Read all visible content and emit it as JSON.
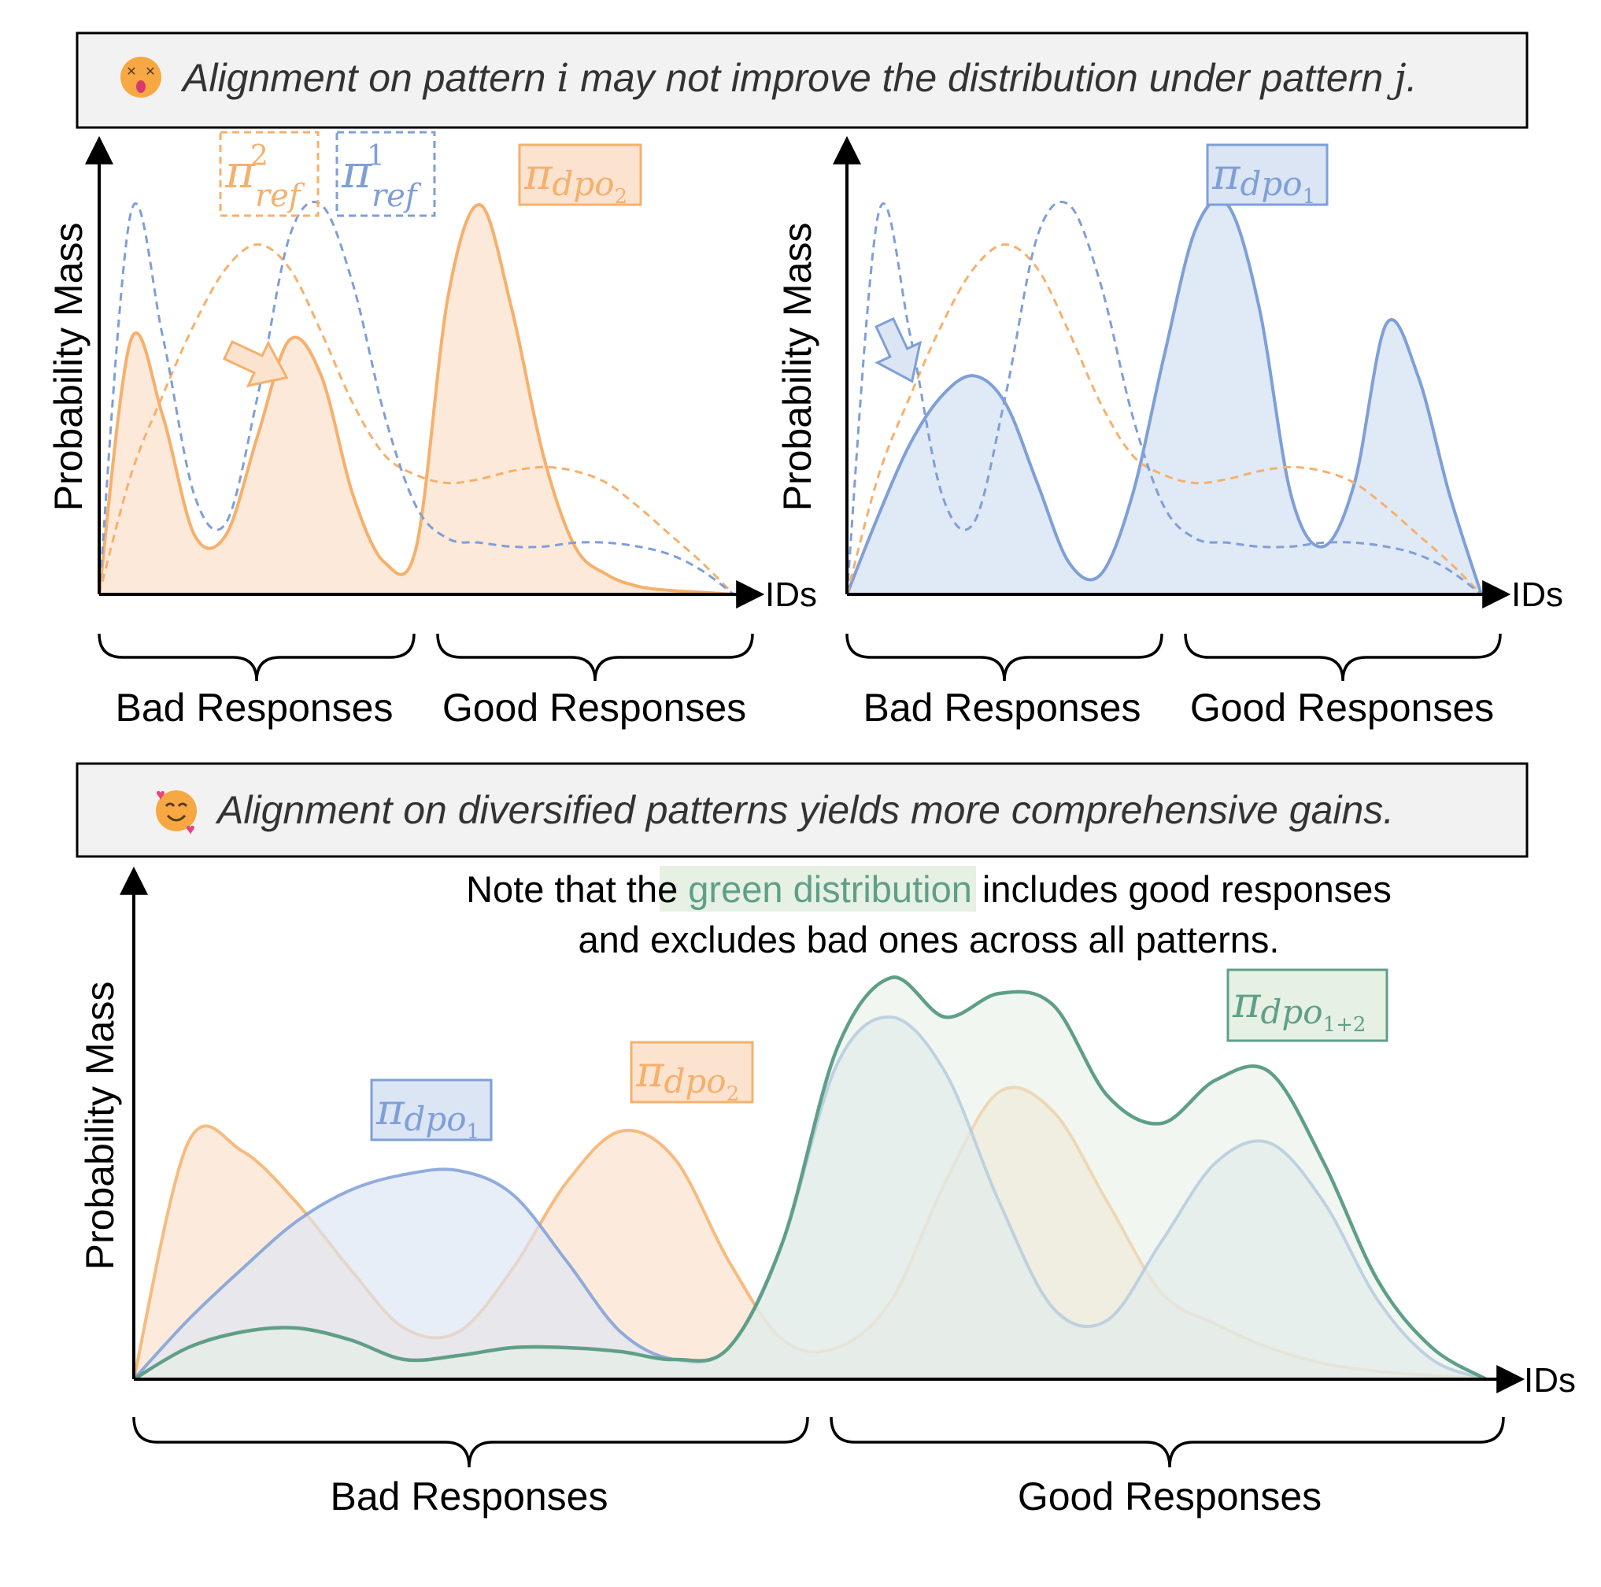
{
  "colors": {
    "orange": "#f6b06c",
    "orange_fill": "#fbe3cf",
    "blue": "#7e9fd8",
    "blue_fill": "#dbe5f4",
    "green": "#5f9f88",
    "green_fill": "#e6f0e3",
    "banner_bg": "#f2f2f2",
    "axis": "#000000"
  },
  "icons": {
    "sad": "dizzy-face-emoji-icon",
    "happy": "smiling-face-with-hearts-emoji-icon"
  },
  "top_banner": {
    "prefix": "Alignment on pattern ",
    "var_i": "i",
    "middle": " may not improve the distribution under pattern ",
    "var_j": "j",
    "suffix": "."
  },
  "bottom_banner": {
    "text": "Alignment on diversified patterns yields more comprehensive gains."
  },
  "note": {
    "line1_before": "Note that the ",
    "line1_highlight": "green distribution",
    "line1_after": " includes good responses",
    "line2": "and excludes bad ones across all patterns."
  },
  "axes": {
    "ylabel": "Probability Mass",
    "xlabel": "IDs",
    "bad": "Bad Responses",
    "good": "Good Responses"
  },
  "labels": {
    "pi": "π",
    "ref": "ref",
    "sup1": "1",
    "sup2": "2",
    "dpo": "dpo",
    "sub1": "1",
    "sub2": "2",
    "sub12": "1+2"
  },
  "chart_data": [
    {
      "type": "area",
      "x": [
        0,
        0.05,
        0.1,
        0.15,
        0.2,
        0.25,
        0.3,
        0.35,
        0.4,
        0.45,
        0.5,
        0.55,
        0.6,
        0.65,
        0.7,
        0.75,
        0.8,
        0.85,
        0.9,
        0.95,
        1
      ],
      "series": [
        {
          "values": [
            0,
            0.64,
            0.45,
            0.15,
            0.15,
            0.4,
            0.64,
            0.55,
            0.25,
            0.08,
            0.12,
            0.75,
            0.98,
            0.72,
            0.35,
            0.12,
            0.05,
            0.02,
            0.01,
            0.005,
            0
          ]
        },
        {
          "values": [
            0,
            0.3,
            0.5,
            0.68,
            0.82,
            0.88,
            0.82,
            0.66,
            0.48,
            0.35,
            0.3,
            0.28,
            0.29,
            0.31,
            0.32,
            0.31,
            0.28,
            0.22,
            0.15,
            0.08,
            0
          ]
        },
        {
          "values": [
            0,
            0.96,
            0.65,
            0.25,
            0.18,
            0.5,
            0.9,
            0.98,
            0.78,
            0.45,
            0.22,
            0.14,
            0.13,
            0.12,
            0.12,
            0.13,
            0.13,
            0.12,
            0.1,
            0.06,
            0
          ]
        }
      ]
    },
    {
      "type": "area",
      "x": [
        0,
        0.05,
        0.1,
        0.15,
        0.2,
        0.25,
        0.3,
        0.35,
        0.4,
        0.45,
        0.5,
        0.55,
        0.6,
        0.65,
        0.7,
        0.75,
        0.8,
        0.85,
        0.9,
        0.95,
        1
      ],
      "series": [
        {
          "values": [
            0,
            0.2,
            0.38,
            0.5,
            0.55,
            0.48,
            0.28,
            0.08,
            0.05,
            0.25,
            0.6,
            0.92,
            0.98,
            0.72,
            0.25,
            0.12,
            0.28,
            0.68,
            0.55,
            0.25,
            0
          ]
        },
        {
          "values": [
            0,
            0.3,
            0.5,
            0.68,
            0.82,
            0.88,
            0.82,
            0.66,
            0.48,
            0.35,
            0.3,
            0.28,
            0.29,
            0.31,
            0.32,
            0.31,
            0.28,
            0.22,
            0.15,
            0.08,
            0
          ]
        },
        {
          "values": [
            0,
            0.96,
            0.65,
            0.25,
            0.18,
            0.5,
            0.9,
            0.98,
            0.78,
            0.45,
            0.22,
            0.14,
            0.13,
            0.12,
            0.12,
            0.13,
            0.13,
            0.12,
            0.1,
            0.06,
            0
          ]
        }
      ]
    },
    {
      "type": "area",
      "x": [
        0,
        0.04,
        0.08,
        0.12,
        0.16,
        0.2,
        0.24,
        0.28,
        0.32,
        0.36,
        0.4,
        0.44,
        0.48,
        0.52,
        0.56,
        0.6,
        0.64,
        0.68,
        0.72,
        0.76,
        0.8,
        0.84,
        0.88,
        0.92,
        0.96,
        1
      ],
      "series": [
        {
          "name": "π_dpo2",
          "values": [
            0,
            0.6,
            0.58,
            0.45,
            0.28,
            0.13,
            0.12,
            0.28,
            0.5,
            0.63,
            0.56,
            0.3,
            0.1,
            0.08,
            0.2,
            0.5,
            0.73,
            0.68,
            0.45,
            0.22,
            0.14,
            0.08,
            0.04,
            0.02,
            0.01,
            0
          ]
        },
        {
          "name": "π_dpo1",
          "values": [
            0,
            0.15,
            0.28,
            0.4,
            0.48,
            0.52,
            0.53,
            0.47,
            0.3,
            0.12,
            0.05,
            0.08,
            0.35,
            0.8,
            0.92,
            0.78,
            0.45,
            0.18,
            0.15,
            0.35,
            0.55,
            0.6,
            0.45,
            0.2,
            0.05,
            0
          ]
        },
        {
          "name": "π_dpo1+2",
          "values": [
            0,
            0.08,
            0.12,
            0.13,
            0.1,
            0.05,
            0.06,
            0.08,
            0.08,
            0.07,
            0.05,
            0.08,
            0.35,
            0.84,
            1.02,
            0.92,
            0.98,
            0.95,
            0.72,
            0.65,
            0.76,
            0.78,
            0.55,
            0.25,
            0.08,
            0
          ]
        }
      ]
    }
  ]
}
